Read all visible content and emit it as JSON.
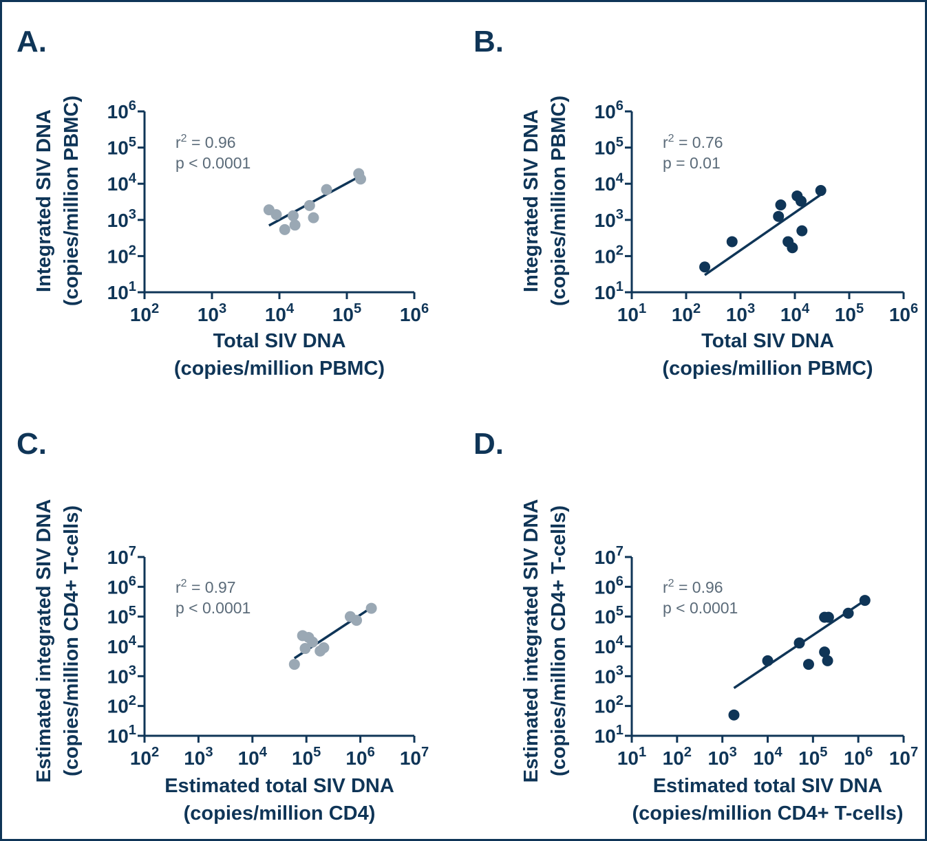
{
  "colors": {
    "navy": "#0f3557",
    "grey": "#9aa8b4",
    "stat_text": "#5b6b79",
    "frame": "#0f3557"
  },
  "chart_data": [
    {
      "type": "scatter",
      "panel_label": "A.",
      "xlabel": [
        "Total SIV DNA",
        "(copies/million PBMC)"
      ],
      "ylabel": [
        "Integrated SIV DNA",
        "(copies/million PBMC)"
      ],
      "scale": "log10",
      "xlim": [
        100,
        1000000
      ],
      "ylim": [
        10,
        1000000
      ],
      "x_ticks": [
        "10^2",
        "10^3",
        "10^4",
        "10^5",
        "10^6"
      ],
      "y_ticks": [
        "10^1",
        "10^2",
        "10^3",
        "10^4",
        "10^5",
        "10^6"
      ],
      "stats": {
        "r2_value": "0.96",
        "p_text": "p < 0.0001"
      },
      "marker_color": "grey",
      "points": [
        {
          "x": 7000,
          "y": 1900
        },
        {
          "x": 9000,
          "y": 1400
        },
        {
          "x": 12000,
          "y": 540
        },
        {
          "x": 16000,
          "y": 1300
        },
        {
          "x": 17000,
          "y": 720
        },
        {
          "x": 28000,
          "y": 2500
        },
        {
          "x": 32000,
          "y": 1150
        },
        {
          "x": 50000,
          "y": 6900
        },
        {
          "x": 150000,
          "y": 19000
        },
        {
          "x": 160000,
          "y": 13500
        }
      ],
      "fit": {
        "x": [
          7000,
          160000
        ],
        "y": [
          700,
          16500
        ]
      }
    },
    {
      "type": "scatter",
      "panel_label": "B.",
      "xlabel": [
        "Total SIV DNA",
        "(copies/million PBMC)"
      ],
      "ylabel": [
        "Integrated SIV DNA",
        "(copies/million PBMC)"
      ],
      "scale": "log10",
      "xlim": [
        10,
        1000000
      ],
      "ylim": [
        10,
        1000000
      ],
      "x_ticks": [
        "10^1",
        "10^2",
        "10^3",
        "10^4",
        "10^5",
        "10^6"
      ],
      "y_ticks": [
        "10^1",
        "10^2",
        "10^3",
        "10^4",
        "10^5",
        "10^6"
      ],
      "stats": {
        "r2_value": "0.76",
        "p_text": "p = 0.01"
      },
      "marker_color": "navy",
      "points": [
        {
          "x": 220,
          "y": 50
        },
        {
          "x": 700,
          "y": 250
        },
        {
          "x": 5000,
          "y": 1250
        },
        {
          "x": 5500,
          "y": 2600
        },
        {
          "x": 7500,
          "y": 250
        },
        {
          "x": 9000,
          "y": 170
        },
        {
          "x": 11000,
          "y": 4600
        },
        {
          "x": 13000,
          "y": 3300
        },
        {
          "x": 13500,
          "y": 500
        },
        {
          "x": 30000,
          "y": 6500
        }
      ],
      "fit": {
        "x": [
          220,
          30000
        ],
        "y": [
          30,
          5000
        ]
      }
    },
    {
      "type": "scatter",
      "panel_label": "C.",
      "xlabel": [
        "Estimated total SIV DNA",
        "(copies/million CD4)"
      ],
      "ylabel": [
        "Estimated integrated SIV DNA",
        "(copies/million CD4+ T-cells)"
      ],
      "scale": "log10",
      "xlim": [
        100,
        10000000
      ],
      "ylim": [
        10,
        10000000
      ],
      "x_ticks": [
        "10^2",
        "10^3",
        "10^4",
        "10^5",
        "10^6",
        "10^7"
      ],
      "y_ticks": [
        "10^1",
        "10^2",
        "10^3",
        "10^4",
        "10^5",
        "10^6",
        "10^7"
      ],
      "stats": {
        "r2_value": "0.97",
        "p_text": "p < 0.0001"
      },
      "marker_color": "grey",
      "points": [
        {
          "x": 60000,
          "y": 2500
        },
        {
          "x": 85000,
          "y": 23000
        },
        {
          "x": 95000,
          "y": 8500
        },
        {
          "x": 110000,
          "y": 20000
        },
        {
          "x": 130000,
          "y": 14000
        },
        {
          "x": 180000,
          "y": 7000
        },
        {
          "x": 210000,
          "y": 9000
        },
        {
          "x": 650000,
          "y": 100000
        },
        {
          "x": 850000,
          "y": 75000
        },
        {
          "x": 1600000,
          "y": 190000
        }
      ],
      "fit": {
        "x": [
          60000,
          1600000
        ],
        "y": [
          4000,
          200000
        ]
      }
    },
    {
      "type": "scatter",
      "panel_label": "D.",
      "xlabel": [
        "Estimated total SIV DNA",
        "(copies/million CD4+ T-cells)"
      ],
      "ylabel": [
        "Estimated integrated SIV DNA",
        "(copies/million CD4+ T-cells)"
      ],
      "scale": "log10",
      "xlim": [
        10,
        10000000
      ],
      "ylim": [
        10,
        10000000
      ],
      "x_ticks": [
        "10^1",
        "10^2",
        "10^3",
        "10^4",
        "10^5",
        "10^6",
        "10^7"
      ],
      "y_ticks": [
        "10^1",
        "10^2",
        "10^3",
        "10^4",
        "10^5",
        "10^6",
        "10^7"
      ],
      "stats": {
        "r2_value": "0.96",
        "p_text": "p < 0.0001"
      },
      "marker_color": "navy",
      "points": [
        {
          "x": 1800,
          "y": 50
        },
        {
          "x": 10000,
          "y": 3300
        },
        {
          "x": 50000,
          "y": 13000
        },
        {
          "x": 80000,
          "y": 2500
        },
        {
          "x": 180000,
          "y": 6500
        },
        {
          "x": 180000,
          "y": 95000
        },
        {
          "x": 210000,
          "y": 3300
        },
        {
          "x": 220000,
          "y": 95000
        },
        {
          "x": 600000,
          "y": 130000
        },
        {
          "x": 1400000,
          "y": 350000
        }
      ],
      "fit": {
        "x": [
          1800,
          1400000
        ],
        "y": [
          400,
          350000
        ]
      }
    }
  ]
}
